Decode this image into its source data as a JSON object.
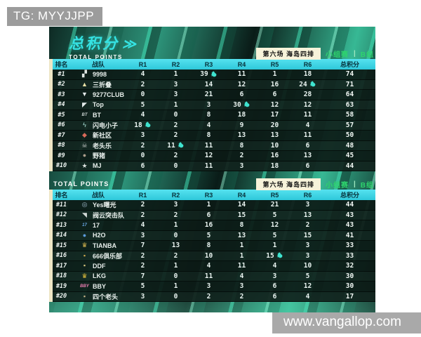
{
  "page": {
    "tg_label": "TG: MYYJJPP",
    "watermark": "www.vangallop.com"
  },
  "scoreboard": {
    "title": "总积分",
    "subtitle": "TOTAL POINTS",
    "arrow_glyph": "≫",
    "colors": {
      "accent_cyan": "#35e3e3",
      "header_cyan": "#3fd6e8",
      "accent_green": "#2ed36d",
      "badge_bg": "#f7f3da",
      "rank_strip": "#eee6c6",
      "chicken_icon": "#3fe3cf"
    },
    "sections": [
      {
        "match_badge": "第六场  海岛四排",
        "stage_label": "小组赛",
        "separator": "|",
        "group_label": "B组",
        "columns": [
          "排名",
          "战队",
          "R1",
          "R2",
          "R3",
          "R4",
          "R5",
          "R6",
          "总积分"
        ],
        "rows": [
          {
            "rank": "#1",
            "name": "9998",
            "logo": {
              "glyph": "▞",
              "color": "#dfe6e3"
            },
            "rounds": [
              4,
              1,
              39,
              11,
              1,
              18
            ],
            "win_round": 3,
            "total": 74
          },
          {
            "rank": "#2",
            "name": "三折叠",
            "logo": {
              "glyph": "▲",
              "color": "#e9e0a6"
            },
            "rounds": [
              2,
              3,
              14,
              12,
              16,
              24
            ],
            "win_round": 6,
            "total": 71
          },
          {
            "rank": "#3",
            "name": "9277CLUB",
            "logo": {
              "glyph": "▼",
              "color": "#e6ecec"
            },
            "rounds": [
              0,
              3,
              21,
              6,
              6,
              28
            ],
            "win_round": 0,
            "total": 64
          },
          {
            "rank": "#4",
            "name": "Top",
            "logo": {
              "glyph": "◤",
              "color": "#e6ecec"
            },
            "rounds": [
              5,
              1,
              3,
              30,
              12,
              12
            ],
            "win_round": 4,
            "total": 63
          },
          {
            "rank": "#5",
            "name": "BT",
            "logo": {
              "glyph": "BT",
              "color": "#cdd5d3"
            },
            "rounds": [
              4,
              0,
              8,
              18,
              17,
              11
            ],
            "win_round": 0,
            "total": 58
          },
          {
            "rank": "#6",
            "name": "闪电小子",
            "logo": {
              "glyph": "ϟ",
              "color": "#aee6db"
            },
            "rounds": [
              18,
              2,
              4,
              9,
              20,
              4
            ],
            "win_round": 1,
            "total": 57
          },
          {
            "rank": "#7",
            "name": "新社区",
            "logo": {
              "glyph": "◆",
              "color": "#d96a5a"
            },
            "rounds": [
              3,
              2,
              8,
              13,
              13,
              11
            ],
            "win_round": 0,
            "total": 50
          },
          {
            "rank": "#8",
            "name": "老头乐",
            "logo": {
              "glyph": "☠",
              "color": "#c4cac7"
            },
            "rounds": [
              2,
              11,
              11,
              8,
              10,
              6
            ],
            "win_round": 2,
            "total": 48
          },
          {
            "rank": "#9",
            "name": "野猪",
            "logo": {
              "glyph": "●",
              "color": "#ab9d8b"
            },
            "rounds": [
              0,
              2,
              12,
              2,
              16,
              13
            ],
            "win_round": 0,
            "total": 45
          },
          {
            "rank": "#10",
            "name": "MJ",
            "logo": {
              "glyph": "★",
              "color": "#dadfdd"
            },
            "rounds": [
              6,
              0,
              11,
              3,
              18,
              6
            ],
            "win_round": 0,
            "total": 44
          }
        ]
      },
      {
        "total_points_label": "TOTAL POINTS",
        "match_badge": "第六场  海岛四排",
        "stage_label": "小组赛",
        "separator": "|",
        "group_label": "B组",
        "columns": [
          "排名",
          "战队",
          "R1",
          "R2",
          "R3",
          "R4",
          "R5",
          "R6",
          "总积分"
        ],
        "rows": [
          {
            "rank": "#11",
            "name": "Yes曙光",
            "logo": {
              "glyph": "◎",
              "color": "#a8c2d4"
            },
            "rounds": [
              2,
              3,
              1,
              14,
              21,
              3
            ],
            "win_round": 0,
            "total": 44
          },
          {
            "rank": "#12",
            "name": "阀云突击队",
            "logo": {
              "glyph": "◥",
              "color": "#d2d9d7"
            },
            "rounds": [
              2,
              2,
              6,
              15,
              5,
              13
            ],
            "win_round": 0,
            "total": 43
          },
          {
            "rank": "#13",
            "name": "17",
            "logo": {
              "glyph": "17",
              "color": "#6aa9e8"
            },
            "rounds": [
              4,
              1,
              16,
              8,
              12,
              2
            ],
            "win_round": 0,
            "total": 43
          },
          {
            "rank": "#14",
            "name": "H2O",
            "logo": {
              "glyph": "●",
              "color": "#5b9bdb"
            },
            "rounds": [
              3,
              0,
              5,
              13,
              5,
              15
            ],
            "win_round": 0,
            "total": 41
          },
          {
            "rank": "#15",
            "name": "TIANBA",
            "logo": {
              "glyph": "♛",
              "color": "#dcba52"
            },
            "rounds": [
              7,
              13,
              8,
              1,
              1,
              3
            ],
            "win_round": 0,
            "total": 33
          },
          {
            "rank": "#16",
            "name": "666俱乐部",
            "logo": {
              "glyph": "▪",
              "color": "#cfa94e"
            },
            "rounds": [
              2,
              2,
              10,
              1,
              15,
              3
            ],
            "win_round": 5,
            "total": 33
          },
          {
            "rank": "#17",
            "name": "DDF",
            "logo": {
              "glyph": "▪",
              "color": "#d8c77e"
            },
            "rounds": [
              2,
              1,
              4,
              11,
              4,
              10
            ],
            "win_round": 0,
            "total": 32
          },
          {
            "rank": "#18",
            "name": "LKG",
            "logo": {
              "glyph": "♛",
              "color": "#e5c23e"
            },
            "rounds": [
              7,
              0,
              11,
              4,
              3,
              5
            ],
            "win_round": 0,
            "total": 30
          },
          {
            "rank": "#19",
            "name": "BBY",
            "logo": {
              "glyph": "BBY",
              "color": "#ef7fb4"
            },
            "rounds": [
              5,
              1,
              3,
              3,
              6,
              12
            ],
            "win_round": 0,
            "total": 30
          },
          {
            "rank": "#20",
            "name": "四个老头",
            "logo": {
              "glyph": "▪",
              "color": "#c9b489"
            },
            "rounds": [
              3,
              0,
              2,
              2,
              6,
              4
            ],
            "win_round": 0,
            "total": 17
          }
        ]
      }
    ]
  }
}
